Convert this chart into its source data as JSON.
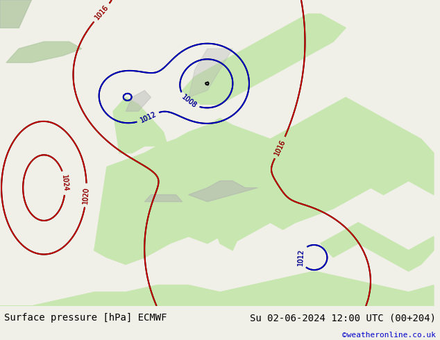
{
  "title_left": "Surface pressure [hPa] ECMWF",
  "title_right": "Su 02-06-2024 12:00 UTC (00+204)",
  "copyright": "©weatheronline.co.uk",
  "bg_color": "#f0f0e8",
  "land_color": "#c8e6b0",
  "sea_color": "#ddeeff",
  "mountain_color": "#b0b0b0",
  "bottom_bar_color": "#e8e8e8",
  "title_fontsize": 10,
  "copyright_color": "#0000cc",
  "fig_width": 6.34,
  "fig_height": 4.9,
  "dpi": 100
}
